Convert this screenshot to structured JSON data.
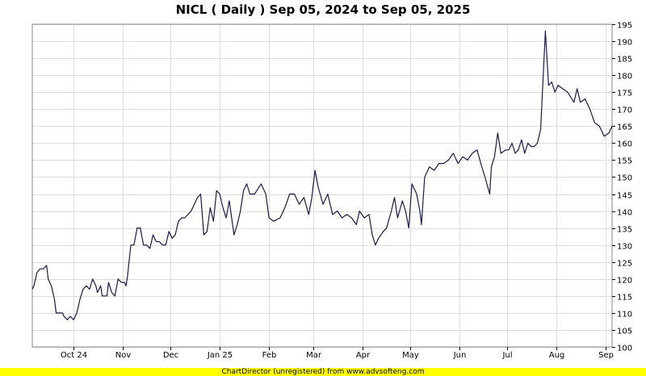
{
  "title": "NICL ( Daily ) Sep 05, 2024 to Sep 05, 2025",
  "footer": "ChartDirector (unregistered) from www.advsofteng.com",
  "colors": {
    "line": "#1a1a4e",
    "grid": "#dddddd",
    "border": "#888888",
    "footer_bg": "#ffff00"
  },
  "chart_data": {
    "type": "line",
    "title": "NICL ( Daily ) Sep 05, 2024 to Sep 05, 2025",
    "xlabel": "",
    "ylabel": "",
    "ylim": [
      100,
      195
    ],
    "xlim": [
      "2024-09-05",
      "2025-09-05"
    ],
    "y_ticks": [
      100,
      105,
      110,
      115,
      120,
      125,
      130,
      135,
      140,
      145,
      150,
      155,
      160,
      165,
      170,
      175,
      180,
      185,
      190,
      195
    ],
    "x_ticks": [
      {
        "label": "Oct 24",
        "date": "2024-10-01"
      },
      {
        "label": "Nov",
        "date": "2024-11-01"
      },
      {
        "label": "Dec",
        "date": "2024-12-01"
      },
      {
        "label": "Jan 25",
        "date": "2025-01-01"
      },
      {
        "label": "Feb",
        "date": "2025-02-01"
      },
      {
        "label": "Mar",
        "date": "2025-03-01"
      },
      {
        "label": "Apr",
        "date": "2025-04-01"
      },
      {
        "label": "May",
        "date": "2025-05-01"
      },
      {
        "label": "Jun",
        "date": "2025-06-01"
      },
      {
        "label": "Jul",
        "date": "2025-07-01"
      },
      {
        "label": "Aug",
        "date": "2025-08-01"
      },
      {
        "label": "Sep",
        "date": "2025-09-01"
      }
    ],
    "grid": true,
    "axis_side": "right",
    "series": [
      {
        "points": [
          [
            "2024-09-05",
            117
          ],
          [
            "2024-09-06",
            118
          ],
          [
            "2024-09-08",
            122
          ],
          [
            "2024-09-10",
            123
          ],
          [
            "2024-09-12",
            123
          ],
          [
            "2024-09-14",
            124
          ],
          [
            "2024-09-15",
            120
          ],
          [
            "2024-09-17",
            118
          ],
          [
            "2024-09-19",
            114
          ],
          [
            "2024-09-20",
            110
          ],
          [
            "2024-09-22",
            110
          ],
          [
            "2024-09-24",
            110
          ],
          [
            "2024-09-25",
            109
          ],
          [
            "2024-09-27",
            108
          ],
          [
            "2024-09-29",
            109
          ],
          [
            "2024-10-01",
            108
          ],
          [
            "2024-10-03",
            110
          ],
          [
            "2024-10-05",
            114
          ],
          [
            "2024-10-07",
            117
          ],
          [
            "2024-10-09",
            118
          ],
          [
            "2024-10-11",
            117
          ],
          [
            "2024-10-13",
            120
          ],
          [
            "2024-10-15",
            118
          ],
          [
            "2024-10-16",
            116
          ],
          [
            "2024-10-18",
            118
          ],
          [
            "2024-10-19",
            115
          ],
          [
            "2024-10-22",
            115
          ],
          [
            "2024-10-23",
            119
          ],
          [
            "2024-10-25",
            116
          ],
          [
            "2024-10-27",
            115
          ],
          [
            "2024-10-29",
            120
          ],
          [
            "2024-10-31",
            119
          ],
          [
            "2024-11-02",
            119
          ],
          [
            "2024-11-03",
            118
          ],
          [
            "2024-11-04",
            121
          ],
          [
            "2024-11-06",
            130
          ],
          [
            "2024-11-08",
            130
          ],
          [
            "2024-11-10",
            135
          ],
          [
            "2024-11-12",
            135
          ],
          [
            "2024-11-14",
            130
          ],
          [
            "2024-11-16",
            130
          ],
          [
            "2024-11-18",
            129
          ],
          [
            "2024-11-20",
            133
          ],
          [
            "2024-11-22",
            131
          ],
          [
            "2024-11-24",
            131
          ],
          [
            "2024-11-26",
            130
          ],
          [
            "2024-11-28",
            130
          ],
          [
            "2024-11-30",
            134
          ],
          [
            "2024-12-02",
            132
          ],
          [
            "2024-12-04",
            133
          ],
          [
            "2024-12-06",
            137
          ],
          [
            "2024-12-08",
            138
          ],
          [
            "2024-12-10",
            138
          ],
          [
            "2024-12-12",
            139
          ],
          [
            "2024-12-14",
            140
          ],
          [
            "2024-12-16",
            142
          ],
          [
            "2024-12-18",
            144
          ],
          [
            "2024-12-20",
            145
          ],
          [
            "2024-12-22",
            133
          ],
          [
            "2024-12-24",
            134
          ],
          [
            "2024-12-26",
            141
          ],
          [
            "2024-12-28",
            137
          ],
          [
            "2024-12-30",
            146
          ],
          [
            "2025-01-01",
            145
          ],
          [
            "2025-01-03",
            141
          ],
          [
            "2025-01-05",
            138
          ],
          [
            "2025-01-07",
            143
          ],
          [
            "2025-01-10",
            133
          ],
          [
            "2025-01-12",
            136
          ],
          [
            "2025-01-14",
            140
          ],
          [
            "2025-01-16",
            146
          ],
          [
            "2025-01-18",
            148
          ],
          [
            "2025-01-20",
            145
          ],
          [
            "2025-01-23",
            145
          ],
          [
            "2025-01-27",
            148
          ],
          [
            "2025-01-30",
            145
          ],
          [
            "2025-02-01",
            138
          ],
          [
            "2025-02-04",
            137
          ],
          [
            "2025-02-08",
            138
          ],
          [
            "2025-02-11",
            141
          ],
          [
            "2025-02-14",
            145
          ],
          [
            "2025-02-17",
            145
          ],
          [
            "2025-02-20",
            142
          ],
          [
            "2025-02-23",
            144
          ],
          [
            "2025-02-26",
            139
          ],
          [
            "2025-02-28",
            144
          ],
          [
            "2025-03-02",
            152
          ],
          [
            "2025-03-04",
            147
          ],
          [
            "2025-03-07",
            142
          ],
          [
            "2025-03-10",
            145
          ],
          [
            "2025-03-13",
            139
          ],
          [
            "2025-03-16",
            140
          ],
          [
            "2025-03-19",
            138
          ],
          [
            "2025-03-22",
            139
          ],
          [
            "2025-03-25",
            138
          ],
          [
            "2025-03-28",
            136
          ],
          [
            "2025-03-30",
            140
          ],
          [
            "2025-04-02",
            138
          ],
          [
            "2025-04-05",
            139
          ],
          [
            "2025-04-07",
            133
          ],
          [
            "2025-04-09",
            130
          ],
          [
            "2025-04-11",
            132
          ],
          [
            "2025-04-14",
            134
          ],
          [
            "2025-04-16",
            135
          ],
          [
            "2025-04-19",
            140
          ],
          [
            "2025-04-21",
            144
          ],
          [
            "2025-04-23",
            138
          ],
          [
            "2025-04-26",
            143
          ],
          [
            "2025-04-28",
            140
          ],
          [
            "2025-04-30",
            135
          ],
          [
            "2025-05-02",
            148
          ],
          [
            "2025-05-05",
            145
          ],
          [
            "2025-05-07",
            140
          ],
          [
            "2025-05-08",
            136
          ],
          [
            "2025-05-10",
            150
          ],
          [
            "2025-05-13",
            153
          ],
          [
            "2025-05-16",
            152
          ],
          [
            "2025-05-19",
            154
          ],
          [
            "2025-05-22",
            154
          ],
          [
            "2025-05-25",
            155
          ],
          [
            "2025-05-28",
            157
          ],
          [
            "2025-05-31",
            154
          ],
          [
            "2025-06-03",
            156
          ],
          [
            "2025-06-06",
            155
          ],
          [
            "2025-06-09",
            157
          ],
          [
            "2025-06-12",
            158
          ],
          [
            "2025-06-15",
            153
          ],
          [
            "2025-06-17",
            150
          ],
          [
            "2025-06-20",
            145
          ],
          [
            "2025-06-21",
            153
          ],
          [
            "2025-06-23",
            156
          ],
          [
            "2025-06-25",
            163
          ],
          [
            "2025-06-27",
            157
          ],
          [
            "2025-06-30",
            158
          ],
          [
            "2025-07-02",
            158
          ],
          [
            "2025-07-04",
            160
          ],
          [
            "2025-07-06",
            157
          ],
          [
            "2025-07-08",
            158
          ],
          [
            "2025-07-10",
            161
          ],
          [
            "2025-07-12",
            157
          ],
          [
            "2025-07-14",
            160
          ],
          [
            "2025-07-16",
            159
          ],
          [
            "2025-07-18",
            159
          ],
          [
            "2025-07-20",
            160
          ],
          [
            "2025-07-22",
            164
          ],
          [
            "2025-07-25",
            193
          ],
          [
            "2025-07-27",
            177
          ],
          [
            "2025-07-29",
            178
          ],
          [
            "2025-07-31",
            175
          ],
          [
            "2025-08-02",
            177
          ],
          [
            "2025-08-05",
            176
          ],
          [
            "2025-08-08",
            175
          ],
          [
            "2025-08-12",
            172
          ],
          [
            "2025-08-14",
            176
          ],
          [
            "2025-08-16",
            172
          ],
          [
            "2025-08-19",
            173
          ],
          [
            "2025-08-22",
            170
          ],
          [
            "2025-08-25",
            166
          ],
          [
            "2025-08-28",
            165
          ],
          [
            "2025-08-31",
            162
          ],
          [
            "2025-09-03",
            163
          ],
          [
            "2025-09-05",
            165
          ]
        ]
      }
    ]
  }
}
